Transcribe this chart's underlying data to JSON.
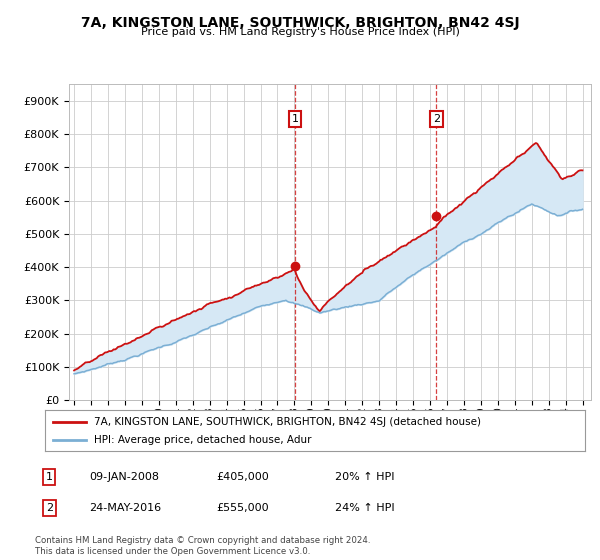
{
  "title": "7A, KINGSTON LANE, SOUTHWICK, BRIGHTON, BN42 4SJ",
  "subtitle": "Price paid vs. HM Land Registry's House Price Index (HPI)",
  "legend_line1": "7A, KINGSTON LANE, SOUTHWICK, BRIGHTON, BN42 4SJ (detached house)",
  "legend_line2": "HPI: Average price, detached house, Adur",
  "annotation1_date": "09-JAN-2008",
  "annotation1_price": "£405,000",
  "annotation1_hpi": "20% ↑ HPI",
  "annotation2_date": "24-MAY-2016",
  "annotation2_price": "£555,000",
  "annotation2_hpi": "24% ↑ HPI",
  "footnote": "Contains HM Land Registry data © Crown copyright and database right 2024.\nThis data is licensed under the Open Government Licence v3.0.",
  "hpi_color": "#7bafd4",
  "price_color": "#cc1111",
  "annotation_color": "#cc1111",
  "fill_color": "#d6e8f5",
  "background_color": "#ffffff",
  "grid_color": "#cccccc",
  "ylim": [
    0,
    950000
  ],
  "yticks": [
    0,
    100000,
    200000,
    300000,
    400000,
    500000,
    600000,
    700000,
    800000,
    900000
  ],
  "sale1_year": 2008.03,
  "sale1_price": 405000,
  "sale2_year": 2016.38,
  "sale2_price": 555000
}
